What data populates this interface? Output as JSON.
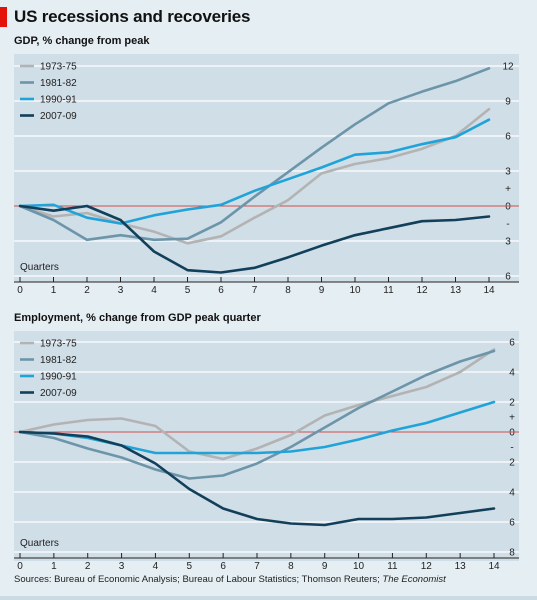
{
  "title": "US recessions and recoveries",
  "source": {
    "text": "Sources: Bureau of Economic Analysis; Bureau of Labour Statistics; Thomson Reuters; ",
    "italic": "The Economist"
  },
  "colors": {
    "background": "#e5eef3",
    "panel": "#d0dee7",
    "zero_line": "#d0504f",
    "accent": "#e3120b"
  },
  "chart_data": [
    {
      "type": "line",
      "title": "GDP, % change from peak",
      "xlabel": "Quarters",
      "ylabel": "",
      "x": [
        0,
        1,
        2,
        3,
        4,
        5,
        6,
        7,
        8,
        9,
        10,
        11,
        12,
        13,
        14
      ],
      "xlim": [
        0,
        14
      ],
      "ylim": [
        -6,
        12
      ],
      "yaxis_inverted_labels": true,
      "yticks": [
        {
          "value": 12,
          "label": "12"
        },
        {
          "value": 9,
          "label": "9"
        },
        {
          "value": 6,
          "label": "6"
        },
        {
          "value": 3,
          "label": "3"
        },
        {
          "value": 1.5,
          "label": "+"
        },
        {
          "value": 0,
          "label": "0"
        },
        {
          "value": -1.5,
          "label": "-"
        },
        {
          "value": -3,
          "label": "3"
        },
        {
          "value": -6,
          "label": "6"
        }
      ],
      "legend_position": "top-left",
      "series": [
        {
          "name": "1973-75",
          "color": "#b3b3b3",
          "values": [
            0,
            -0.9,
            -0.6,
            -1.5,
            -2.2,
            -3.2,
            -2.6,
            -1.0,
            0.5,
            2.8,
            3.6,
            4.1,
            4.9,
            6.0,
            8.3
          ]
        },
        {
          "name": "1981-82",
          "color": "#6d95aa",
          "values": [
            0,
            -1.2,
            -2.9,
            -2.5,
            -2.9,
            -2.8,
            -1.4,
            0.8,
            2.9,
            5.0,
            7.0,
            8.8,
            9.8,
            10.7,
            11.8
          ]
        },
        {
          "name": "1990-91",
          "color": "#1fa3d9",
          "values": [
            0,
            0.1,
            -1.0,
            -1.5,
            -0.8,
            -0.3,
            0.1,
            1.3,
            2.3,
            3.3,
            4.4,
            4.6,
            5.3,
            5.9,
            7.4
          ]
        },
        {
          "name": "2007-09",
          "color": "#123f5a",
          "values": [
            0,
            -0.4,
            0.0,
            -1.2,
            -3.9,
            -5.5,
            -5.7,
            -5.3,
            -4.4,
            -3.4,
            -2.5,
            -1.9,
            -1.3,
            -1.2,
            -0.9
          ]
        }
      ]
    },
    {
      "type": "line",
      "title": "Employment, % change from GDP peak quarter",
      "xlabel": "Quarters",
      "ylabel": "",
      "x": [
        0,
        1,
        2,
        3,
        4,
        5,
        6,
        7,
        8,
        9,
        10,
        11,
        12,
        13,
        14
      ],
      "xlim": [
        0,
        14
      ],
      "ylim": [
        -8,
        6
      ],
      "yaxis_inverted_labels": true,
      "yticks": [
        {
          "value": 6,
          "label": "6"
        },
        {
          "value": 4,
          "label": "4"
        },
        {
          "value": 2,
          "label": "2"
        },
        {
          "value": 1,
          "label": "+"
        },
        {
          "value": 0,
          "label": "0"
        },
        {
          "value": -1,
          "label": "-"
        },
        {
          "value": -2,
          "label": "2"
        },
        {
          "value": -4,
          "label": "4"
        },
        {
          "value": -6,
          "label": "6"
        },
        {
          "value": -8,
          "label": "8"
        }
      ],
      "legend_position": "top-left",
      "series": [
        {
          "name": "1973-75",
          "color": "#b3b3b3",
          "values": [
            0,
            0.5,
            0.8,
            0.9,
            0.4,
            -1.3,
            -1.8,
            -1.1,
            -0.2,
            1.1,
            1.8,
            2.4,
            3.0,
            4.0,
            5.5
          ]
        },
        {
          "name": "1981-82",
          "color": "#6d95aa",
          "values": [
            0,
            -0.4,
            -1.1,
            -1.7,
            -2.5,
            -3.1,
            -2.9,
            -2.1,
            -1.0,
            0.3,
            1.6,
            2.7,
            3.8,
            4.7,
            5.4
          ]
        },
        {
          "name": "1990-91",
          "color": "#1fa3d9",
          "values": [
            0,
            -0.1,
            -0.4,
            -0.9,
            -1.4,
            -1.4,
            -1.4,
            -1.4,
            -1.3,
            -1.0,
            -0.5,
            0.1,
            0.6,
            1.3,
            2.0
          ]
        },
        {
          "name": "2007-09",
          "color": "#123f5a",
          "values": [
            0,
            -0.1,
            -0.3,
            -0.9,
            -2.1,
            -3.8,
            -5.1,
            -5.8,
            -6.1,
            -6.2,
            -5.8,
            -5.8,
            -5.7,
            -5.4,
            -5.1
          ]
        }
      ]
    }
  ]
}
